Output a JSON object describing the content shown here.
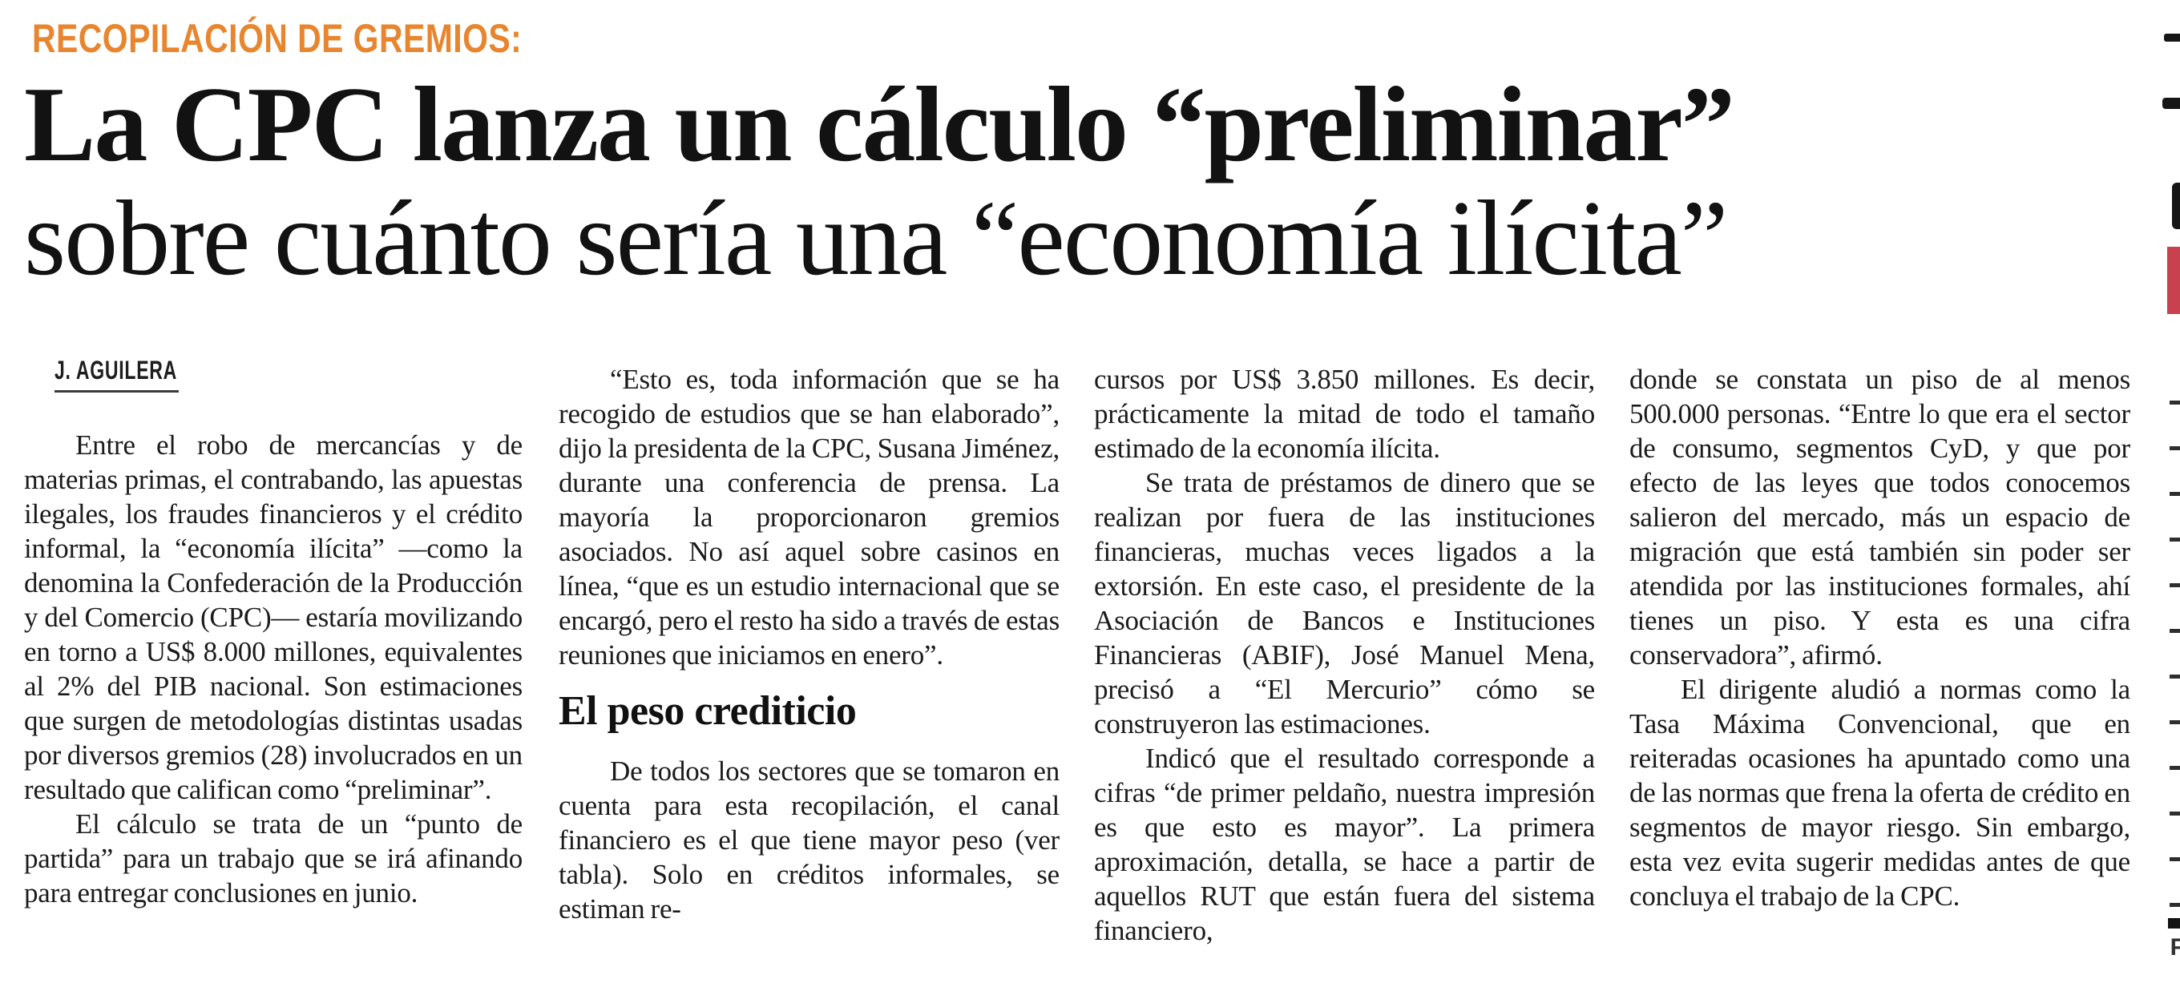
{
  "kicker": {
    "text": "RECOPILACIÓN DE GREMIOS:",
    "color": "#e8862f"
  },
  "headline": {
    "line1": "La CPC lanza un cálculo “preliminar”",
    "line2": "sobre cuánto sería una “economía ilícita”"
  },
  "byline": "J. AGUILERA",
  "article": {
    "col1": {
      "p1": "Entre el robo de mercancías y de materias primas, el contrabando, las apuestas ilegales, los fraudes financieros y el crédito informal, la “economía ilícita” —como la denomina la Confederación de la Producción y del Comercio (CPC)— estaría movilizando en torno a US$ 8.000 millones, equivalentes al 2% del PIB nacional. Son estimaciones que surgen de metodologías distintas usadas por diversos gremios (28) involucrados en un resultado que califican como “preliminar”.",
      "p2": "El cálculo se trata de un “punto de partida” para un trabajo que se irá afinando para entregar conclusiones en junio."
    },
    "col2": {
      "p1": "“Esto es, toda información que se ha recogido de estudios que se han elaborado”, dijo la presidenta de la CPC, Susana Jiménez, durante una conferencia de prensa. La mayoría la proporcionaron gremios asociados. No así aquel sobre casinos en línea, “que es un estudio internacional que se encargó, pero el resto ha sido a través de estas reuniones que iniciamos en enero”.",
      "subhead": "El peso crediticio",
      "p2": "De todos los sectores que se tomaron en cuenta para esta recopilación, el canal financiero es el que tiene mayor peso (ver tabla). Solo en créditos informales, se estiman re-"
    },
    "col3": {
      "p1": "cursos por US$ 3.850 millones. Es decir, prácticamente la mitad de todo el tamaño estimado de la economía ilícita.",
      "p2": "Se trata de préstamos de dinero que se realizan por fuera de las instituciones financieras, muchas veces ligados a la extorsión. En este caso, el presidente de la Asociación de Bancos e Instituciones Financieras (ABIF), José Manuel Mena, precisó a “El Mercurio” cómo se construyeron las estimaciones.",
      "p3": "Indicó que el resultado corresponde a cifras “de primer peldaño, nuestra impresión es que esto es mayor”. La primera aproximación, detalla, se hace a partir de aquellos RUT que están fuera del sistema financiero,"
    },
    "col4": {
      "p1": "donde se constata un piso de al menos 500.000 personas. “Entre lo que era el sector de consumo, segmentos CyD, y que por efecto de las leyes que todos conocemos salieron del mercado, más un espacio de migración que está también sin poder ser atendida por las instituciones formales, ahí tienes un piso. Y esta es una cifra conservadora”, afirmó.",
      "p2": "El dirigente aludió a normas como la Tasa Máxima Convencional, que en reiteradas ocasiones ha apuntado como una de las normas que frena la oferta de crédito en segmentos de mayor riesgo. Sin embargo, esta vez evita sugerir medidas antes de que concluya el trabajo de la CPC."
    }
  },
  "right_edge": {
    "red_marker_color": "#c8414f",
    "bottom_letter": "F"
  }
}
